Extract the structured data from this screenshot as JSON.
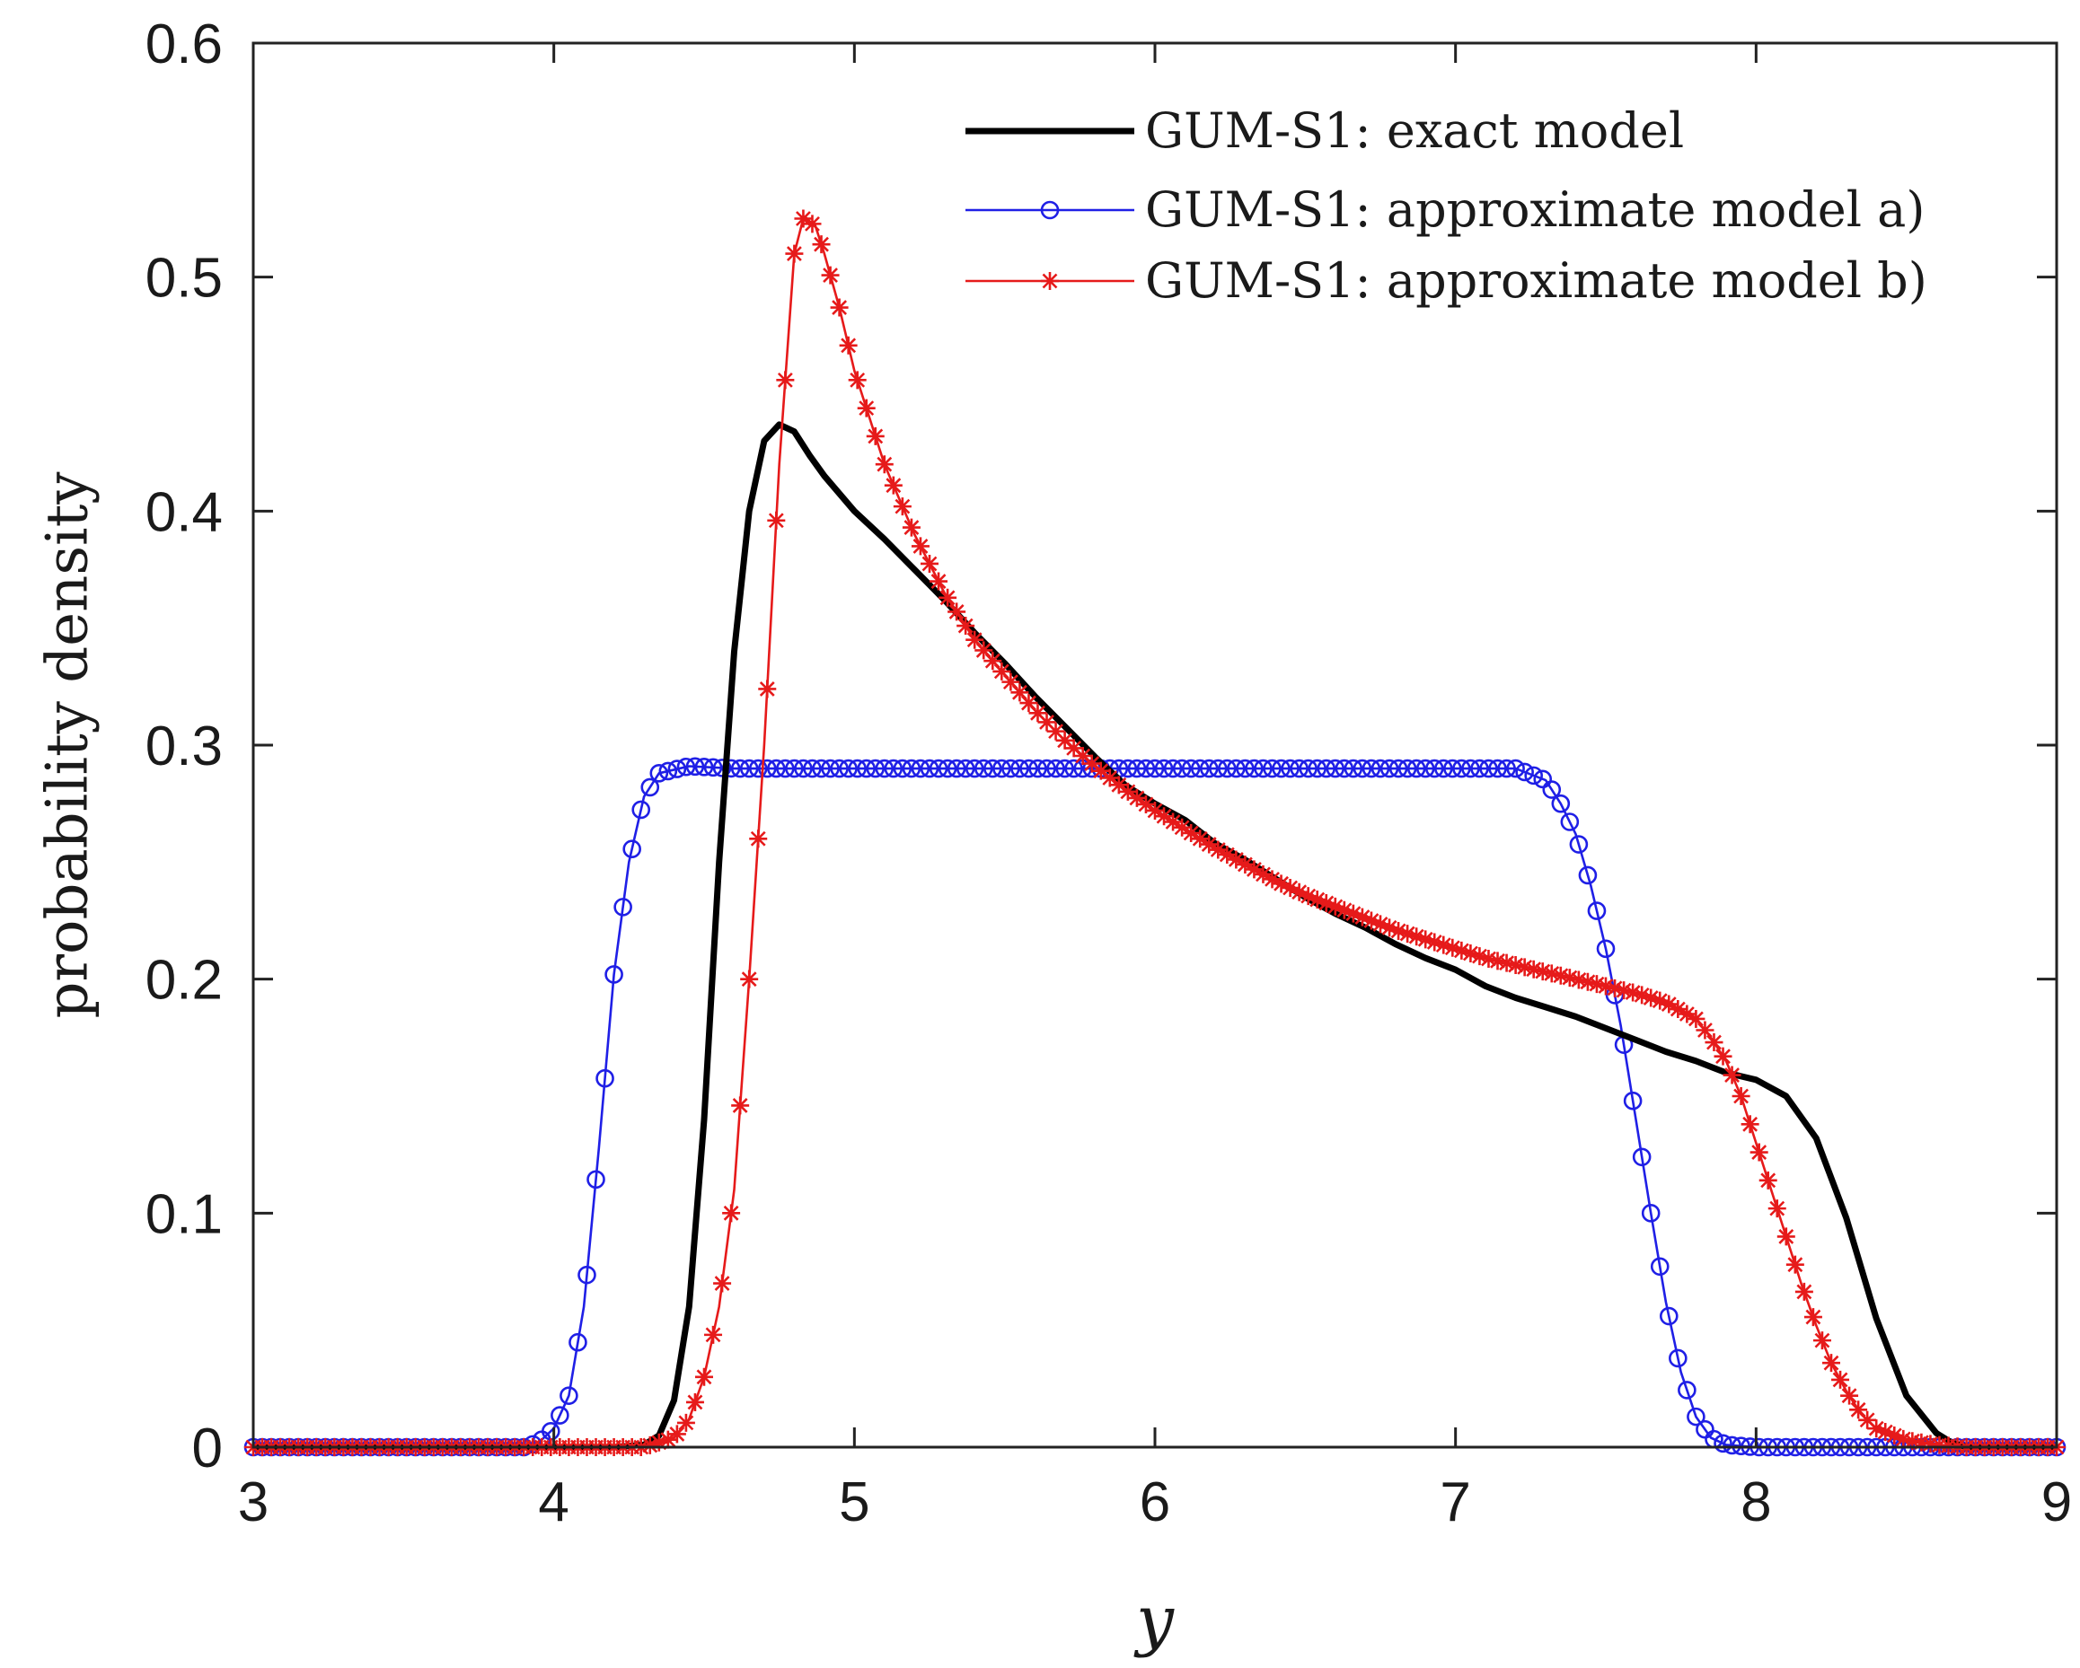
{
  "chart_data": {
    "type": "line",
    "title": "",
    "xlabel": "y",
    "ylabel": "probability density",
    "xlim": [
      3,
      9
    ],
    "ylim": [
      0,
      0.6
    ],
    "xticks": [
      "3",
      "4",
      "5",
      "6",
      "7",
      "8",
      "9"
    ],
    "yticks": [
      "0",
      "0.1",
      "0.2",
      "0.3",
      "0.4",
      "0.5",
      "0.6"
    ],
    "legend_position": "top-right",
    "series": [
      {
        "name": "GUM-S1: exact model",
        "color": "#000000",
        "marker": "none",
        "points": [
          [
            3.0,
            0
          ],
          [
            4.2,
            0
          ],
          [
            4.3,
            0.001
          ],
          [
            4.35,
            0.005
          ],
          [
            4.4,
            0.02
          ],
          [
            4.45,
            0.06
          ],
          [
            4.5,
            0.14
          ],
          [
            4.55,
            0.25
          ],
          [
            4.6,
            0.34
          ],
          [
            4.65,
            0.4
          ],
          [
            4.7,
            0.43
          ],
          [
            4.75,
            0.437
          ],
          [
            4.8,
            0.434
          ],
          [
            4.85,
            0.424
          ],
          [
            4.9,
            0.415
          ],
          [
            5.0,
            0.4
          ],
          [
            5.1,
            0.388
          ],
          [
            5.2,
            0.375
          ],
          [
            5.3,
            0.362
          ],
          [
            5.4,
            0.348
          ],
          [
            5.5,
            0.335
          ],
          [
            5.6,
            0.321
          ],
          [
            5.7,
            0.308
          ],
          [
            5.8,
            0.295
          ],
          [
            5.9,
            0.283
          ],
          [
            6.0,
            0.275
          ],
          [
            6.1,
            0.268
          ],
          [
            6.2,
            0.258
          ],
          [
            6.3,
            0.251
          ],
          [
            6.4,
            0.243
          ],
          [
            6.5,
            0.235
          ],
          [
            6.6,
            0.228
          ],
          [
            6.7,
            0.222
          ],
          [
            6.8,
            0.215
          ],
          [
            6.9,
            0.209
          ],
          [
            7.0,
            0.204
          ],
          [
            7.1,
            0.197
          ],
          [
            7.2,
            0.192
          ],
          [
            7.3,
            0.188
          ],
          [
            7.4,
            0.184
          ],
          [
            7.5,
            0.179
          ],
          [
            7.6,
            0.174
          ],
          [
            7.7,
            0.169
          ],
          [
            7.8,
            0.165
          ],
          [
            7.9,
            0.16
          ],
          [
            8.0,
            0.157
          ],
          [
            8.1,
            0.15
          ],
          [
            8.2,
            0.132
          ],
          [
            8.3,
            0.098
          ],
          [
            8.4,
            0.055
          ],
          [
            8.5,
            0.022
          ],
          [
            8.6,
            0.006
          ],
          [
            8.65,
            0.002
          ],
          [
            8.7,
            0
          ],
          [
            9.0,
            0
          ]
        ]
      },
      {
        "name": "GUM-S1: approximate model a)",
        "color": "#1f1fe6",
        "marker": "circle",
        "points": [
          [
            3.0,
            0
          ],
          [
            3.9,
            0
          ],
          [
            3.95,
            0.002
          ],
          [
            4.0,
            0.008
          ],
          [
            4.05,
            0.022
          ],
          [
            4.1,
            0.06
          ],
          [
            4.15,
            0.128
          ],
          [
            4.2,
            0.202
          ],
          [
            4.25,
            0.25
          ],
          [
            4.3,
            0.278
          ],
          [
            4.35,
            0.288
          ],
          [
            4.45,
            0.291
          ],
          [
            4.6,
            0.29
          ],
          [
            5.0,
            0.29
          ],
          [
            5.5,
            0.29
          ],
          [
            6.0,
            0.29
          ],
          [
            6.5,
            0.29
          ],
          [
            7.0,
            0.29
          ],
          [
            7.2,
            0.29
          ],
          [
            7.3,
            0.285
          ],
          [
            7.35,
            0.275
          ],
          [
            7.4,
            0.262
          ],
          [
            7.45,
            0.24
          ],
          [
            7.5,
            0.213
          ],
          [
            7.55,
            0.18
          ],
          [
            7.6,
            0.14
          ],
          [
            7.65,
            0.1
          ],
          [
            7.7,
            0.062
          ],
          [
            7.75,
            0.032
          ],
          [
            7.8,
            0.013
          ],
          [
            7.85,
            0.004
          ],
          [
            7.9,
            0.001
          ],
          [
            8.0,
            0
          ],
          [
            9.0,
            0
          ]
        ]
      },
      {
        "name": "GUM-S1: approximate model b)",
        "color": "#e61a1a",
        "marker": "star",
        "points": [
          [
            3.0,
            0
          ],
          [
            4.3,
            0
          ],
          [
            4.4,
            0.004
          ],
          [
            4.45,
            0.012
          ],
          [
            4.5,
            0.03
          ],
          [
            4.55,
            0.06
          ],
          [
            4.6,
            0.11
          ],
          [
            4.65,
            0.2
          ],
          [
            4.7,
            0.3
          ],
          [
            4.75,
            0.42
          ],
          [
            4.8,
            0.51
          ],
          [
            4.83,
            0.525
          ],
          [
            4.87,
            0.522
          ],
          [
            4.9,
            0.51
          ],
          [
            4.95,
            0.487
          ],
          [
            5.0,
            0.46
          ],
          [
            5.1,
            0.42
          ],
          [
            5.2,
            0.39
          ],
          [
            5.3,
            0.365
          ],
          [
            5.4,
            0.345
          ],
          [
            5.5,
            0.33
          ],
          [
            5.6,
            0.315
          ],
          [
            5.7,
            0.302
          ],
          [
            5.8,
            0.291
          ],
          [
            5.9,
            0.281
          ],
          [
            6.0,
            0.272
          ],
          [
            6.1,
            0.264
          ],
          [
            6.2,
            0.256
          ],
          [
            6.3,
            0.249
          ],
          [
            6.4,
            0.242
          ],
          [
            6.5,
            0.236
          ],
          [
            6.6,
            0.231
          ],
          [
            6.7,
            0.226
          ],
          [
            6.8,
            0.221
          ],
          [
            6.9,
            0.217
          ],
          [
            7.0,
            0.213
          ],
          [
            7.1,
            0.209
          ],
          [
            7.2,
            0.206
          ],
          [
            7.3,
            0.203
          ],
          [
            7.4,
            0.2
          ],
          [
            7.5,
            0.197
          ],
          [
            7.6,
            0.194
          ],
          [
            7.7,
            0.19
          ],
          [
            7.8,
            0.183
          ],
          [
            7.85,
            0.175
          ],
          [
            7.9,
            0.165
          ],
          [
            7.95,
            0.15
          ],
          [
            8.0,
            0.13
          ],
          [
            8.05,
            0.11
          ],
          [
            8.1,
            0.09
          ],
          [
            8.15,
            0.07
          ],
          [
            8.2,
            0.052
          ],
          [
            8.25,
            0.036
          ],
          [
            8.3,
            0.024
          ],
          [
            8.35,
            0.014
          ],
          [
            8.4,
            0.008
          ],
          [
            8.5,
            0.003
          ],
          [
            8.6,
            0.001
          ],
          [
            8.7,
            0
          ],
          [
            9.0,
            0
          ]
        ]
      }
    ]
  }
}
